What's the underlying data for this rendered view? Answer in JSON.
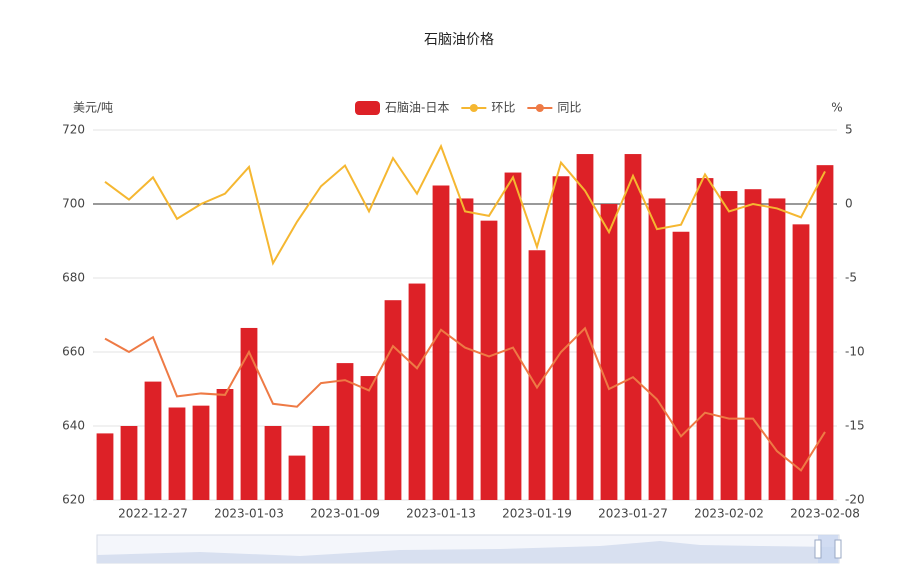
{
  "chart_data": {
    "type": "bar-line",
    "title": "石脑油价格",
    "ylabel": "美元/吨",
    "y2label": "%",
    "categories": [
      null,
      null,
      "2022-12-27",
      null,
      null,
      null,
      "2023-01-03",
      null,
      null,
      null,
      "2023-01-09",
      null,
      null,
      null,
      "2023-01-13",
      null,
      null,
      null,
      "2023-01-19",
      null,
      null,
      null,
      "2023-01-27",
      null,
      null,
      null,
      "2023-02-02",
      null,
      null,
      null,
      "2023-02-08"
    ],
    "series": [
      {
        "name": "石脑油-日本",
        "type": "bar",
        "color": "#dd2127",
        "values": [
          638,
          640,
          652,
          645,
          645.5,
          650,
          666.5,
          640,
          632,
          640,
          657,
          653.5,
          674,
          678.5,
          705,
          701.5,
          695.5,
          708.5,
          687.5,
          707.5,
          713.5,
          700,
          713.5,
          701.5,
          692.5,
          707,
          703.5,
          704,
          701.5,
          694.5,
          710.5
        ]
      },
      {
        "name": "环比",
        "type": "line",
        "axis": "y2",
        "color": "#f5b731",
        "values": [
          1.5,
          0.3,
          1.8,
          -1.0,
          0,
          0.7,
          2.5,
          -4.0,
          -1.2,
          1.2,
          2.6,
          -0.5,
          3.1,
          0.7,
          3.9,
          -0.5,
          -0.8,
          1.8,
          -2.9,
          2.8,
          0.9,
          -1.9,
          1.9,
          -1.7,
          -1.4,
          2.0,
          -0.5,
          0,
          -0.3,
          -0.9,
          2.2
        ]
      },
      {
        "name": "同比",
        "type": "line",
        "axis": "y2",
        "color": "#ee7a45",
        "values": [
          -9.1,
          -10.0,
          -9.0,
          -13.0,
          -12.8,
          -12.9,
          -10.0,
          -13.5,
          -13.7,
          -12.1,
          -11.9,
          -12.6,
          -9.6,
          -11.1,
          -8.5,
          -9.7,
          -10.3,
          -9.7,
          -12.4,
          -10.0,
          -8.4,
          -12.5,
          -11.7,
          -13.2,
          -15.7,
          -14.1,
          -14.5,
          -14.5,
          -16.7,
          -18.0,
          -15.4
        ]
      }
    ],
    "ylim": [
      620,
      720
    ],
    "yticks": [
      620,
      640,
      660,
      680,
      700,
      720
    ],
    "y2lim": [
      -20,
      5
    ],
    "y2ticks": [
      -20,
      -15,
      -10,
      -5,
      0,
      5
    ],
    "grid": true
  }
}
